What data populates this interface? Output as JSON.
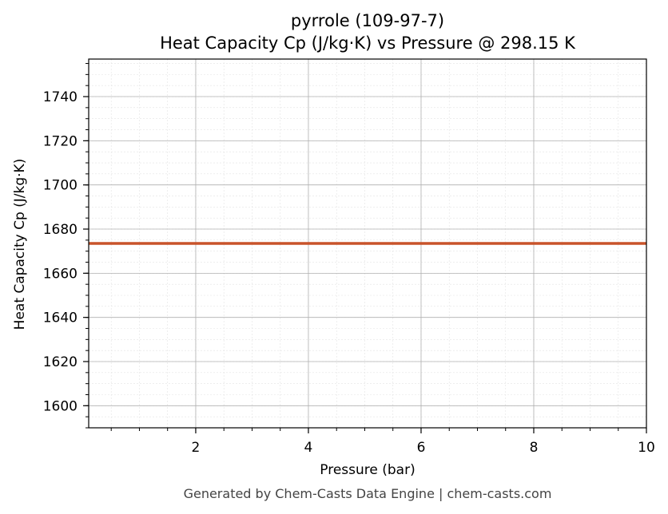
{
  "chart_data": {
    "type": "line",
    "title": "pyrrole (109-97-7)",
    "subtitle": "Heat Capacity Cp (J/kg·K) vs Pressure @ 298.15 K",
    "xlabel": "Pressure (bar)",
    "ylabel": "Heat Capacity Cp (J/kg·K)",
    "xlim": [
      0.1,
      10
    ],
    "ylim": [
      1590,
      1757
    ],
    "x_ticks": [
      2,
      4,
      6,
      8,
      10
    ],
    "y_ticks": [
      1600,
      1620,
      1640,
      1660,
      1680,
      1700,
      1720,
      1740
    ],
    "grid": true,
    "legend": "none",
    "series": [
      {
        "color": "#c8532a",
        "x": [
          0.1,
          1,
          2,
          3,
          4,
          5,
          6,
          7,
          8,
          9,
          10
        ],
        "y": [
          1673.5,
          1673.5,
          1673.5,
          1673.5,
          1673.5,
          1673.5,
          1673.5,
          1673.5,
          1673.5,
          1673.5,
          1673.5
        ]
      }
    ]
  },
  "footer": "Generated by Chem-Casts Data Engine | chem-casts.com"
}
